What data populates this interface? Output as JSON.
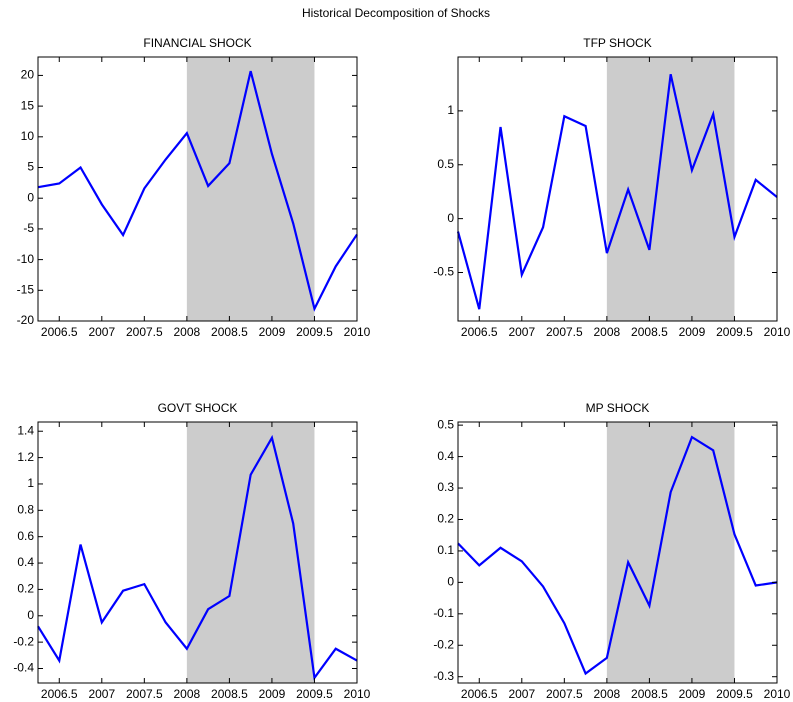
{
  "title": "Historical Decomposition of Shocks",
  "chart_data": [
    {
      "type": "line",
      "title": "FINANCIAL SHOCK",
      "x": [
        2006.25,
        2006.5,
        2006.75,
        2007,
        2007.25,
        2007.5,
        2007.75,
        2008,
        2008.25,
        2008.5,
        2008.75,
        2009,
        2009.25,
        2009.5,
        2009.75,
        2010
      ],
      "series": [
        {
          "color": "#0000ff",
          "values": [
            1.8,
            2.4,
            5.0,
            -1.0,
            -6.0,
            1.6,
            6.3,
            10.6,
            2.0,
            5.7,
            20.7,
            7.2,
            -4.1,
            -18.0,
            -11.1,
            -5.9
          ]
        }
      ],
      "xlim": [
        2006.25,
        2010
      ],
      "xticks": [
        2006.5,
        2007,
        2007.5,
        2008,
        2008.5,
        2009,
        2009.5,
        2010
      ],
      "ylim": [
        -20,
        23
      ],
      "yticks": [
        -20,
        -15,
        -10,
        -5,
        0,
        5,
        10,
        15,
        20
      ],
      "shade": [
        2008,
        2009.5
      ],
      "shade_color": "#cccccc"
    },
    {
      "type": "line",
      "title": "TFP SHOCK",
      "x": [
        2006.25,
        2006.5,
        2006.75,
        2007,
        2007.25,
        2007.5,
        2007.75,
        2008,
        2008.25,
        2008.5,
        2008.75,
        2009,
        2009.25,
        2009.5,
        2009.75,
        2010
      ],
      "series": [
        {
          "color": "#0000ff",
          "values": [
            -0.12,
            -0.84,
            0.85,
            -0.52,
            -0.08,
            0.95,
            0.86,
            -0.32,
            0.27,
            -0.29,
            1.34,
            0.45,
            0.97,
            -0.17,
            0.36,
            0.2
          ]
        }
      ],
      "xlim": [
        2006.25,
        2010
      ],
      "xticks": [
        2006.5,
        2007,
        2007.5,
        2008,
        2008.5,
        2009,
        2009.5,
        2010
      ],
      "ylim": [
        -0.95,
        1.5
      ],
      "yticks": [
        -0.5,
        0,
        0.5,
        1
      ],
      "shade": [
        2008,
        2009.5
      ],
      "shade_color": "#cccccc"
    },
    {
      "type": "line",
      "title": "GOVT SHOCK",
      "x": [
        2006.25,
        2006.5,
        2006.75,
        2007,
        2007.25,
        2007.5,
        2007.75,
        2008,
        2008.25,
        2008.5,
        2008.75,
        2009,
        2009.25,
        2009.5,
        2009.75,
        2010
      ],
      "series": [
        {
          "color": "#0000ff",
          "values": [
            -0.08,
            -0.34,
            0.54,
            -0.05,
            0.19,
            0.24,
            -0.05,
            -0.25,
            0.05,
            0.15,
            1.07,
            1.35,
            0.7,
            -0.47,
            -0.25,
            -0.34
          ]
        }
      ],
      "xlim": [
        2006.25,
        2010
      ],
      "xticks": [
        2006.5,
        2007,
        2007.5,
        2008,
        2008.5,
        2009,
        2009.5,
        2010
      ],
      "ylim": [
        -0.51,
        1.47
      ],
      "yticks": [
        -0.4,
        -0.2,
        0,
        0.2,
        0.4,
        0.6,
        0.8,
        1,
        1.2,
        1.4
      ],
      "shade": [
        2008,
        2009.5
      ],
      "shade_color": "#cccccc"
    },
    {
      "type": "line",
      "title": "MP SHOCK",
      "x": [
        2006.25,
        2006.5,
        2006.75,
        2007,
        2007.25,
        2007.5,
        2007.75,
        2008,
        2008.25,
        2008.5,
        2008.75,
        2009,
        2009.25,
        2009.5,
        2009.75,
        2010
      ],
      "series": [
        {
          "color": "#0000ff",
          "values": [
            0.124,
            0.054,
            0.11,
            0.067,
            -0.013,
            -0.13,
            -0.29,
            -0.24,
            0.064,
            -0.074,
            0.287,
            0.462,
            0.42,
            0.153,
            -0.01,
            0
          ]
        }
      ],
      "xlim": [
        2006.25,
        2010
      ],
      "xticks": [
        2006.5,
        2007,
        2007.5,
        2008,
        2008.5,
        2009,
        2009.5,
        2010
      ],
      "ylim": [
        -0.32,
        0.51
      ],
      "yticks": [
        -0.3,
        -0.2,
        -0.1,
        0,
        0.1,
        0.2,
        0.3,
        0.4,
        0.5
      ],
      "shade": [
        2008,
        2009.5
      ],
      "shade_color": "#cccccc"
    }
  ]
}
